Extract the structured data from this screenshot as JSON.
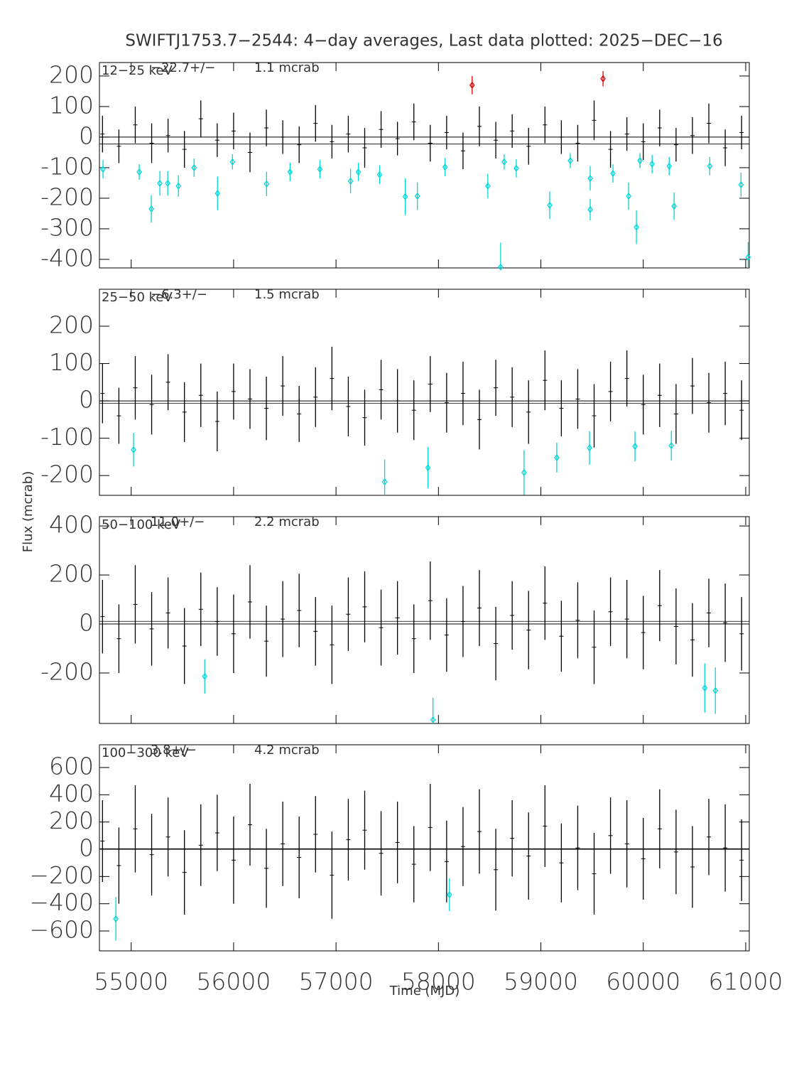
{
  "title": "SWIFTJ1753.7−2544:  4−day averages,  Last data plotted: 2025−DEC−16",
  "x_label": "Time (MJD)",
  "y_label": "Flux (mcrab)",
  "chart_data": [
    {
      "type": "errorbar",
      "band_label": "12−25 keV",
      "mean": {
        "value": -22.7,
        "label": "−22.7+/−"
      },
      "mean_error_label": "1.1 mcrab",
      "xlim": [
        54690,
        61035
      ],
      "xticks": [
        55000,
        56000,
        57000,
        58000,
        59000,
        60000,
        61000
      ],
      "ylim": [
        -428,
        244
      ],
      "yticks": [
        -400,
        -300,
        -200,
        -100,
        0,
        100,
        200
      ],
      "series": [
        {
          "color": "#000000",
          "marker": "none",
          "x": [
            54720,
            54880,
            55040,
            55200,
            55360,
            55520,
            55680,
            55840,
            56000,
            56160,
            56320,
            56480,
            56640,
            56800,
            56960,
            57120,
            57280,
            57440,
            57600,
            57760,
            57920,
            58080,
            58240,
            58400,
            58560,
            58720,
            58880,
            59040,
            59200,
            59360,
            59520,
            59680,
            59840,
            60000,
            60160,
            60320,
            60480,
            60640,
            60800,
            60960
          ],
          "values": [
            10,
            -30,
            40,
            -20,
            5,
            -40,
            60,
            -10,
            20,
            -50,
            30,
            0,
            -25,
            45,
            -15,
            10,
            -35,
            25,
            -5,
            50,
            -20,
            15,
            -45,
            35,
            -10,
            20,
            -30,
            40,
            0,
            -20,
            55,
            -40,
            10,
            -15,
            30,
            -25,
            5,
            45,
            -35,
            15
          ],
          "errors": [
            60,
            55,
            60,
            65,
            55,
            60,
            60,
            55,
            60,
            65,
            60,
            55,
            60,
            60,
            55,
            60,
            65,
            60,
            55,
            60,
            60,
            55,
            60,
            65,
            60,
            55,
            60,
            60,
            55,
            60,
            65,
            60,
            55,
            60,
            60,
            55,
            60,
            65,
            60,
            55
          ]
        },
        {
          "color": "#00d8d8",
          "marker": "diamond",
          "x": [
            54725,
            55079,
            55197,
            55280,
            55357,
            55461,
            55614,
            55843,
            55989,
            56322,
            56551,
            56843,
            57142,
            57218,
            57426,
            57676,
            57794,
            58065,
            58482,
            58607,
            58642,
            58760,
            59086,
            59288,
            59482,
            59482,
            59704,
            59857,
            59933,
            59968,
            60086,
            60253,
            60301,
            60649,
            60954,
            61024
          ],
          "values": [
            -105,
            -114,
            -235,
            -151,
            -151,
            -160,
            -100,
            -184,
            -81,
            -153,
            -114,
            -105,
            -144,
            -114,
            -123,
            -195,
            -193,
            -98,
            -160,
            -425,
            -81,
            -102,
            -223,
            -77,
            -135,
            -237,
            -119,
            -193,
            -295,
            -77,
            -88,
            -95,
            -226,
            -95,
            -156,
            -393
          ],
          "errors": [
            30,
            25,
            45,
            40,
            40,
            35,
            30,
            55,
            25,
            40,
            30,
            30,
            40,
            30,
            30,
            60,
            45,
            30,
            40,
            80,
            25,
            30,
            45,
            25,
            40,
            35,
            30,
            45,
            55,
            25,
            30,
            30,
            45,
            30,
            40,
            50
          ]
        },
        {
          "color": "#e00000",
          "marker": "diamond",
          "x": [
            58329,
            59607
          ],
          "values": [
            170,
            191
          ],
          "errors": [
            30,
            25
          ]
        }
      ]
    },
    {
      "type": "errorbar",
      "band_label": "25−50 keV",
      "mean": {
        "value": -6.3,
        "label": "−6.3+/−"
      },
      "mean_error_label": "1.5 mcrab",
      "xlim": [
        54690,
        61035
      ],
      "xticks": [
        55000,
        56000,
        57000,
        58000,
        59000,
        60000,
        61000
      ],
      "ylim": [
        -253,
        299
      ],
      "yticks": [
        -200,
        -100,
        0,
        100,
        200
      ],
      "series": [
        {
          "color": "#000000",
          "marker": "none",
          "x": [
            54720,
            54880,
            55040,
            55200,
            55360,
            55520,
            55680,
            55840,
            56000,
            56160,
            56320,
            56480,
            56640,
            56800,
            56960,
            57120,
            57280,
            57440,
            57600,
            57760,
            57920,
            58080,
            58240,
            58400,
            58560,
            58720,
            58880,
            59040,
            59200,
            59360,
            59520,
            59680,
            59840,
            60000,
            60160,
            60320,
            60480,
            60640,
            60800,
            60960
          ],
          "values": [
            20,
            -40,
            35,
            -10,
            50,
            -30,
            15,
            -55,
            25,
            5,
            -20,
            40,
            -35,
            10,
            60,
            -15,
            -45,
            30,
            0,
            -25,
            45,
            -5,
            20,
            -50,
            35,
            10,
            -30,
            55,
            -20,
            5,
            -40,
            25,
            60,
            -10,
            15,
            -35,
            40,
            -5,
            20,
            -25
          ],
          "errors": [
            80,
            75,
            85,
            80,
            75,
            80,
            85,
            80,
            75,
            80,
            85,
            80,
            75,
            80,
            85,
            80,
            75,
            80,
            85,
            80,
            75,
            80,
            85,
            80,
            75,
            80,
            85,
            80,
            75,
            80,
            85,
            80,
            75,
            80,
            85,
            80,
            75,
            80,
            85,
            80
          ]
        },
        {
          "color": "#00d8d8",
          "marker": "diamond",
          "x": [
            55023,
            57475,
            57898,
            58836,
            59155,
            59475,
            59919,
            60274
          ],
          "values": [
            -131,
            -217,
            -179,
            -192,
            -152,
            -126,
            -122,
            -120
          ],
          "errors": [
            45,
            60,
            55,
            60,
            40,
            45,
            40,
            40
          ]
        }
      ]
    },
    {
      "type": "errorbar",
      "band_label": "50−100 keV",
      "mean": {
        "value": 11.0,
        "label": "11.0+/−"
      },
      "mean_error_label": "2.2 mcrab",
      "xlim": [
        54690,
        61035
      ],
      "xticks": [
        55000,
        56000,
        57000,
        58000,
        59000,
        60000,
        61000
      ],
      "ylim": [
        -406,
        438
      ],
      "yticks": [
        -200,
        0,
        200,
        400
      ],
      "series": [
        {
          "color": "#000000",
          "marker": "none",
          "x": [
            54720,
            54880,
            55040,
            55200,
            55360,
            55520,
            55680,
            55840,
            56000,
            56160,
            56320,
            56480,
            56640,
            56800,
            56960,
            57120,
            57280,
            57440,
            57600,
            57760,
            57920,
            58080,
            58240,
            58400,
            58560,
            58720,
            58880,
            59040,
            59200,
            59360,
            59520,
            59680,
            59840,
            60000,
            60160,
            60320,
            60480,
            60640,
            60800,
            60960
          ],
          "values": [
            30,
            -60,
            80,
            -20,
            45,
            -90,
            60,
            10,
            -40,
            90,
            -70,
            20,
            55,
            -30,
            -85,
            40,
            70,
            -15,
            25,
            -60,
            95,
            -45,
            10,
            65,
            -80,
            35,
            -25,
            85,
            -50,
            15,
            -95,
            50,
            20,
            -35,
            75,
            -10,
            -65,
            45,
            5,
            -40
          ],
          "errors": [
            150,
            140,
            160,
            150,
            145,
            155,
            150,
            140,
            160,
            150,
            145,
            155,
            150,
            140,
            160,
            150,
            145,
            155,
            150,
            140,
            160,
            150,
            145,
            155,
            150,
            140,
            160,
            150,
            145,
            155,
            150,
            140,
            160,
            150,
            145,
            155,
            150,
            140,
            160,
            150
          ]
        },
        {
          "color": "#00d8d8",
          "marker": "diamond",
          "x": [
            55718,
            57947,
            60600,
            60704
          ],
          "values": [
            -214,
            -391,
            -261,
            -272
          ],
          "errors": [
            70,
            90,
            100,
            95
          ]
        }
      ]
    },
    {
      "type": "errorbar",
      "band_label": "100−300 keV",
      "mean": {
        "value": 3.8,
        "label": "3.8+/−"
      },
      "mean_error_label": "4.2 mcrab",
      "xlim": [
        54690,
        61035
      ],
      "xticks": [
        55000,
        56000,
        57000,
        58000,
        59000,
        60000,
        61000
      ],
      "xtick_labels_shown": true,
      "ylim": [
        -746,
        767
      ],
      "yticks": [
        {
          "value": -600,
          "label": "−600"
        },
        {
          "value": -400,
          "label": "−400"
        },
        {
          "value": -200,
          "label": "−200"
        },
        0,
        200,
        400,
        600
      ],
      "series": [
        {
          "color": "#000000",
          "marker": "none",
          "x": [
            54720,
            54880,
            55040,
            55200,
            55360,
            55520,
            55680,
            55840,
            56000,
            56160,
            56320,
            56480,
            56640,
            56800,
            56960,
            57120,
            57280,
            57440,
            57600,
            57760,
            57920,
            58080,
            58240,
            58400,
            58560,
            58720,
            58880,
            59040,
            59200,
            59360,
            59520,
            59680,
            59840,
            60000,
            60160,
            60320,
            60480,
            60640,
            60800,
            60960
          ],
          "values": [
            60,
            -120,
            150,
            -40,
            90,
            -170,
            30,
            120,
            -80,
            180,
            -140,
            40,
            -60,
            110,
            -190,
            70,
            140,
            -30,
            50,
            -110,
            160,
            -90,
            20,
            130,
            -150,
            80,
            -50,
            170,
            -100,
            10,
            -180,
            100,
            40,
            -70,
            150,
            -20,
            -130,
            90,
            10,
            -80
          ],
          "errors": [
            300,
            280,
            320,
            300,
            290,
            310,
            300,
            280,
            320,
            300,
            290,
            310,
            300,
            280,
            320,
            300,
            290,
            310,
            300,
            280,
            320,
            300,
            290,
            310,
            300,
            280,
            320,
            300,
            290,
            310,
            300,
            280,
            320,
            300,
            290,
            310,
            300,
            280,
            320,
            300
          ]
        },
        {
          "color": "#00d8d8",
          "marker": "diamond",
          "x": [
            54850,
            58107
          ],
          "values": [
            -511,
            -334
          ],
          "errors": [
            160,
            120
          ]
        }
      ]
    }
  ]
}
